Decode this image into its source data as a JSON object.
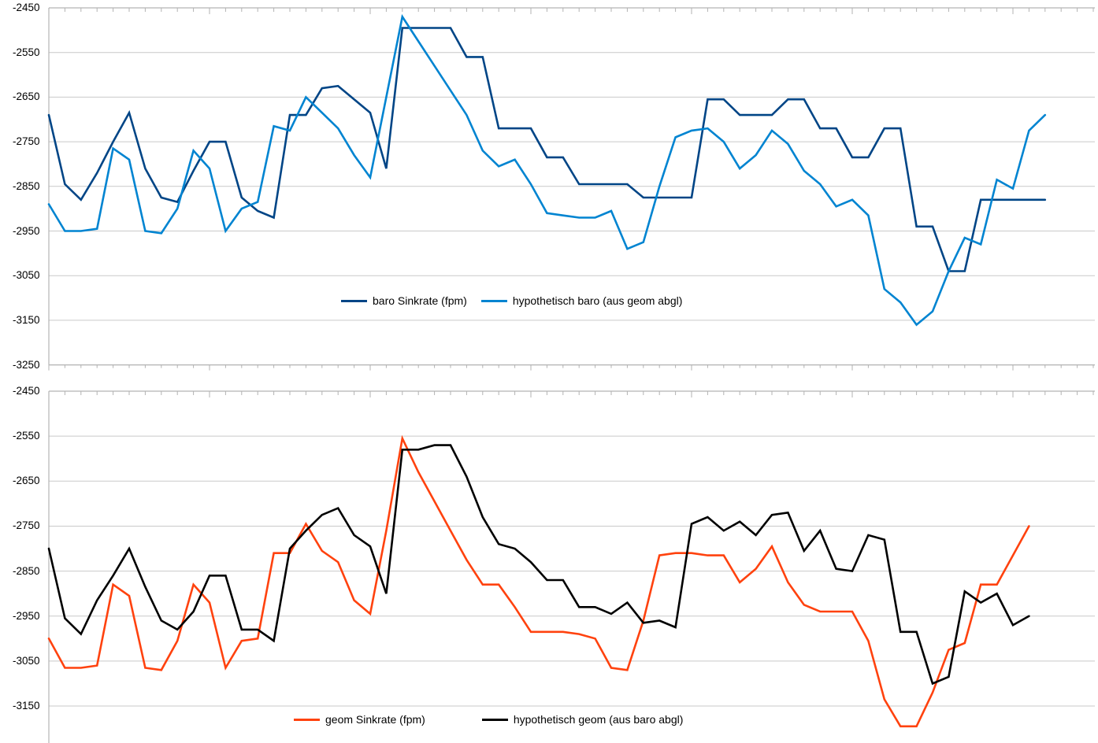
{
  "chart_data": [
    {
      "type": "line",
      "title": "",
      "xlabel": "",
      "ylabel": "",
      "x_description": "sample index, no x tick labels visible",
      "ylim": [
        -3250,
        -2450
      ],
      "y_tick_step": 100,
      "y_tick_labels": [
        "-2450",
        "-2550",
        "-2650",
        "-2750",
        "-2850",
        "-2950",
        "-3050",
        "-3150",
        "-3250"
      ],
      "grid": "horizontal",
      "legend_position": "inside-bottom-center",
      "legend": [
        {
          "label": "baro Sinkrate (fpm)",
          "color": "#004586"
        },
        {
          "label": "hypothetisch baro (aus geom abgl)",
          "color": "#0084D1"
        }
      ],
      "series": [
        {
          "name": "baro Sinkrate (fpm)",
          "color": "#004586",
          "values": [
            -2690,
            -2845,
            -2880,
            -2820,
            -2750,
            -2685,
            -2810,
            -2875,
            -2885,
            -2815,
            -2750,
            -2750,
            -2875,
            -2905,
            -2920,
            -2690,
            -2690,
            -2630,
            -2625,
            -2655,
            -2685,
            -2810,
            -2495,
            -2495,
            -2495,
            -2495,
            -2560,
            -2560,
            -2720,
            -2720,
            -2720,
            -2785,
            -2785,
            -2845,
            -2845,
            -2845,
            -2845,
            -2875,
            -2875,
            -2875,
            -2875,
            -2655,
            -2655,
            -2690,
            -2690,
            -2690,
            -2655,
            -2655,
            -2720,
            -2720,
            -2785,
            -2785,
            -2720,
            -2720,
            -2940,
            -2940,
            -3040,
            -3040,
            -2880,
            -2880,
            -2880,
            -2880,
            -2880
          ]
        },
        {
          "name": "hypothetisch baro (aus geom abgl)",
          "color": "#0084D1",
          "values": [
            -2890,
            -2950,
            -2950,
            -2945,
            -2765,
            -2790,
            -2950,
            -2955,
            -2900,
            -2770,
            -2810,
            -2950,
            -2900,
            -2885,
            -2715,
            -2725,
            -2650,
            -2685,
            -2720,
            -2780,
            -2830,
            -2650,
            -2470,
            -2525,
            -2580,
            -2635,
            -2690,
            -2770,
            -2805,
            -2790,
            -2845,
            -2910,
            -2915,
            -2920,
            -2920,
            -2905,
            -2990,
            -2975,
            -2850,
            -2740,
            -2725,
            -2720,
            -2750,
            -2810,
            -2780,
            -2725,
            -2755,
            -2815,
            -2845,
            -2895,
            -2880,
            -2915,
            -3080,
            -3110,
            -3160,
            -3130,
            -3040,
            -2965,
            -2980,
            -2835,
            -2855,
            -2725,
            -2690
          ]
        }
      ]
    },
    {
      "type": "line",
      "title": "",
      "xlabel": "",
      "ylabel": "",
      "x_description": "sample index, no x tick labels visible; chart clipped at image bottom",
      "ylim": [
        -3250,
        -2450
      ],
      "y_tick_step": 100,
      "y_tick_labels": [
        "-2450",
        "-2550",
        "-2650",
        "-2750",
        "-2850",
        "-2950",
        "-3050",
        "-3150"
      ],
      "grid": "horizontal",
      "legend_position": "inside-bottom-center",
      "legend": [
        {
          "label": "geom Sinkrate (fpm)",
          "color": "#FF420E"
        },
        {
          "label": "hypothetisch geom (aus baro abgl)",
          "color": "#000000"
        }
      ],
      "series": [
        {
          "name": "geom Sinkrate (fpm)",
          "color": "#FF420E",
          "values": [
            -3000,
            -3065,
            -3065,
            -3060,
            -2880,
            -2905,
            -3065,
            -3070,
            -3005,
            -2880,
            -2920,
            -3065,
            -3005,
            -3000,
            -2810,
            -2810,
            -2745,
            -2805,
            -2830,
            -2915,
            -2945,
            -2760,
            -2555,
            -2630,
            -2695,
            -2760,
            -2825,
            -2880,
            -2880,
            -2930,
            -2985,
            -2985,
            -2985,
            -2990,
            -3000,
            -3065,
            -3070,
            -2960,
            -2815,
            -2810,
            -2810,
            -2815,
            -2815,
            -2875,
            -2845,
            -2795,
            -2875,
            -2925,
            -2940,
            -2940,
            -2940,
            -3005,
            -3135,
            -3195,
            -3195,
            -3120,
            -3025,
            -3010,
            -2880,
            -2880,
            -2815,
            -2750
          ]
        },
        {
          "name": "hypothetisch geom (aus baro abgl)",
          "color": "#000000",
          "values": [
            -2800,
            -2955,
            -2990,
            -2915,
            -2860,
            -2800,
            -2885,
            -2960,
            -2980,
            -2940,
            -2860,
            -2860,
            -2980,
            -2980,
            -3005,
            -2800,
            -2760,
            -2725,
            -2710,
            -2770,
            -2795,
            -2900,
            -2580,
            -2580,
            -2570,
            -2570,
            -2640,
            -2730,
            -2790,
            -2800,
            -2830,
            -2870,
            -2870,
            -2930,
            -2930,
            -2945,
            -2920,
            -2965,
            -2960,
            -2975,
            -2745,
            -2730,
            -2760,
            -2740,
            -2770,
            -2725,
            -2720,
            -2805,
            -2760,
            -2845,
            -2850,
            -2770,
            -2780,
            -2985,
            -2985,
            -3100,
            -3085,
            -2895,
            -2920,
            -2900,
            -2970,
            -2950
          ]
        }
      ]
    }
  ],
  "style": {
    "background": "#ffffff",
    "axis_color": "#b3b3b3",
    "gridline_color": "#c9c9c9",
    "label_color": "#000000"
  }
}
